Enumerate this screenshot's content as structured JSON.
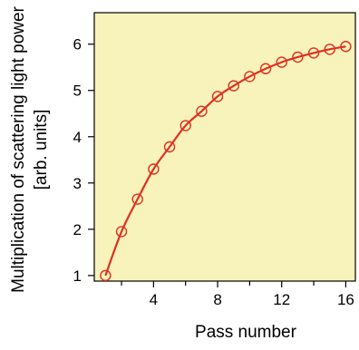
{
  "chart_data": {
    "type": "line",
    "title": "",
    "xlabel": "Pass number",
    "ylabel": [
      "Multiplication of scattering light power",
      "[arb. units]"
    ],
    "xlim": [
      0.3,
      16.6
    ],
    "ylim": [
      0.88,
      6.68
    ],
    "x_ticks": [
      4,
      8,
      12,
      16
    ],
    "x_minor_ticks": [
      2,
      6,
      10,
      14
    ],
    "y_ticks": [
      1,
      2,
      3,
      4,
      5,
      6
    ],
    "grid": false,
    "plot_background": "#f8f3bb",
    "series": [
      {
        "x": [
          1,
          2,
          3,
          4,
          5,
          6,
          7,
          8,
          9,
          10,
          11,
          12,
          13,
          14,
          15,
          16
        ],
        "y": [
          1.0,
          1.95,
          2.65,
          3.3,
          3.78,
          4.24,
          4.55,
          4.87,
          5.1,
          5.3,
          5.47,
          5.61,
          5.72,
          5.81,
          5.89,
          5.95
        ],
        "color": "#e03020",
        "marker": "open-circle",
        "line": "smooth"
      }
    ]
  }
}
